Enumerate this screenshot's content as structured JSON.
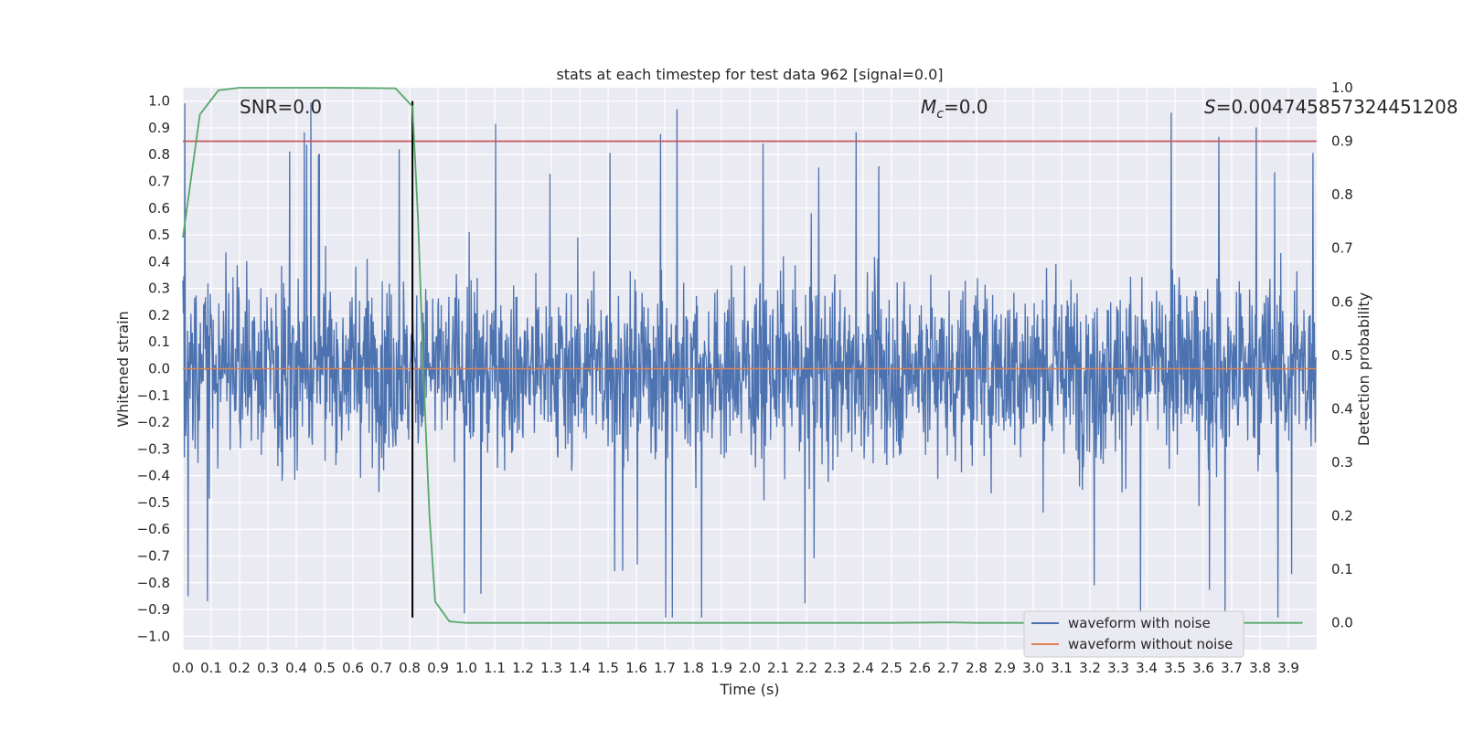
{
  "chart_data": {
    "type": "line",
    "title": "stats at each timestep for test data 962 [signal=0.0]",
    "xlabel": "Time (s)",
    "ylabel": "Whitened strain",
    "ylabel_right": "Detection probability",
    "xlim": [
      0.0,
      4.0
    ],
    "ylim": [
      -1.05,
      1.05
    ],
    "ylim_right": [
      -0.05,
      1.0
    ],
    "x_ticks": [
      "0.0",
      "0.1",
      "0.2",
      "0.3",
      "0.4",
      "0.5",
      "0.6",
      "0.7",
      "0.8",
      "0.9",
      "1.0",
      "1.1",
      "1.2",
      "1.3",
      "1.4",
      "1.5",
      "1.6",
      "1.7",
      "1.8",
      "1.9",
      "2.0",
      "2.1",
      "2.2",
      "2.3",
      "2.4",
      "2.5",
      "2.6",
      "2.7",
      "2.8",
      "2.9",
      "3.0",
      "3.1",
      "3.2",
      "3.3",
      "3.4",
      "3.5",
      "3.6",
      "3.7",
      "3.8",
      "3.9"
    ],
    "y_ticks": [
      "1.0",
      "0.9",
      "0.8",
      "0.7",
      "0.6",
      "0.5",
      "0.4",
      "0.3",
      "0.2",
      "0.1",
      "0.0",
      "−0.1",
      "−0.2",
      "−0.3",
      "−0.4",
      "−0.5",
      "−0.6",
      "−0.7",
      "−0.8",
      "−0.9",
      "−1.0"
    ],
    "y_ticks_right": [
      "1.0",
      "0.9",
      "0.8",
      "0.7",
      "0.6",
      "0.5",
      "0.4",
      "0.3",
      "0.2",
      "0.1",
      "0.0"
    ],
    "grid": true,
    "legend_position": "lower-right",
    "annotations": {
      "snr": "SNR=0.0",
      "mc_symbol": "M",
      "mc_sub": "c",
      "mc_value": "=0.0",
      "s_symbol": "S",
      "s_value": "=0.004745857324451208"
    },
    "series": [
      {
        "name": "waveform with noise",
        "color": "#4c72b0",
        "note_hidden": false,
        "amplitude_range": [
          -0.93,
          1.0
        ]
      },
      {
        "name": "waveform without noise",
        "color": "#dd8452",
        "values": [
          [
            0.0,
            0.0
          ],
          [
            4.0,
            0.0
          ]
        ]
      },
      {
        "name_hidden": "detection probability",
        "color": "#55a868",
        "axis": "right",
        "values": [
          [
            0.0,
            0.72
          ],
          [
            0.06,
            0.95
          ],
          [
            0.125,
            0.995
          ],
          [
            0.2,
            1.0
          ],
          [
            0.5,
            1.0
          ],
          [
            0.75,
            0.999
          ],
          [
            0.81,
            0.965
          ],
          [
            0.83,
            0.75
          ],
          [
            0.85,
            0.45
          ],
          [
            0.87,
            0.2
          ],
          [
            0.89,
            0.04
          ],
          [
            0.94,
            0.003
          ],
          [
            1.0,
            0.0
          ],
          [
            2.5,
            0.0
          ],
          [
            2.7,
            0.001
          ],
          [
            2.8,
            0.0
          ],
          [
            3.95,
            0.0
          ]
        ]
      }
    ],
    "threshold_line": {
      "color": "#c44e52",
      "y_right": 0.9
    },
    "marker_line": {
      "color": "#000000",
      "x": 0.81,
      "y_range": [
        -0.93,
        1.0
      ]
    },
    "legend": [
      {
        "label": "waveform with noise",
        "color": "#4c72b0"
      },
      {
        "label": "waveform without noise",
        "color": "#dd8452"
      }
    ]
  }
}
